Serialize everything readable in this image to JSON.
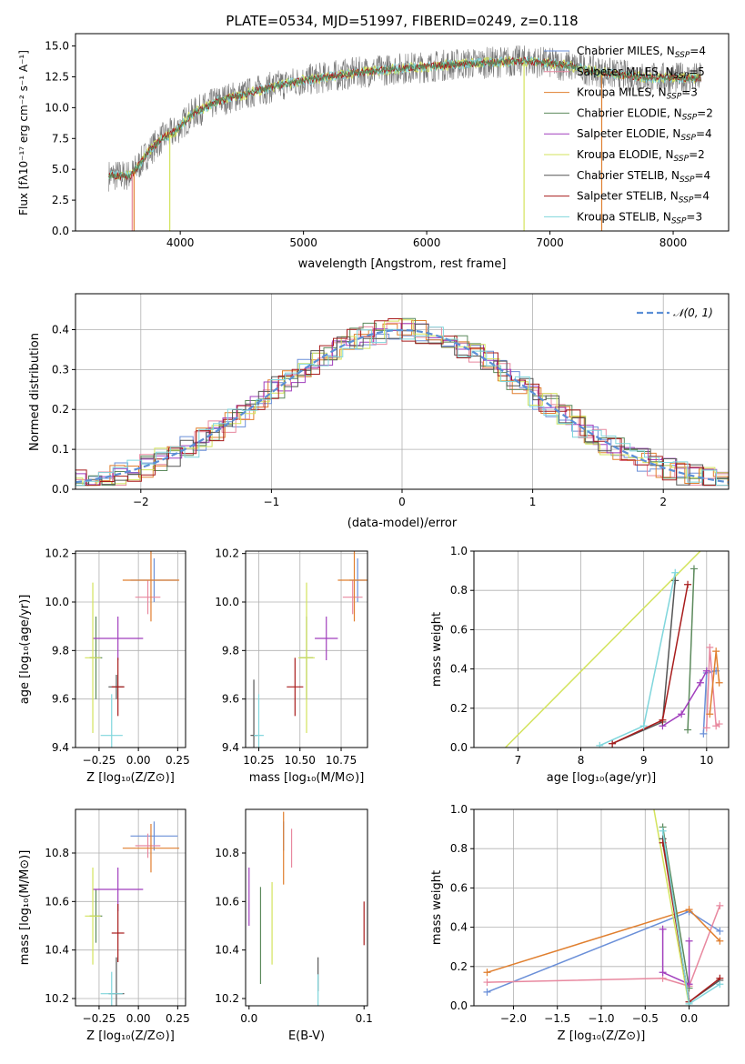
{
  "figure_title": "PLATE=0534, MJD=51997, FIBERID=0249, z=0.118",
  "colors": {
    "Chabrier MILES": "#6a8fd8",
    "Salpeter MILES": "#e8889f",
    "Kroupa MILES": "#e07f2f",
    "Chabrier ELODIE": "#5c8a5c",
    "Salpeter ELODIE": "#a13fbd",
    "Kroupa ELODIE": "#d3e35c",
    "Chabrier STELIB": "#555555",
    "Salpeter STELIB": "#a81c1c",
    "Kroupa STELIB": "#7fd6dc",
    "normal": "#5b8fd6"
  },
  "panels": {
    "spectrum": {
      "xlabel": "wavelength [Angstrom, rest frame]",
      "ylabel": "Flux [fλ10⁻¹⁷ erg cm⁻² s⁻¹ A⁻¹]",
      "xticks": [
        "4000",
        "5000",
        "6000",
        "7000",
        "8000"
      ],
      "yticks": [
        "0.0",
        "2.5",
        "5.0",
        "7.5",
        "10.0",
        "12.5",
        "15.0"
      ],
      "legend": [
        "Chabrier MILES, N_SSP=4",
        "Salpeter MILES, N_SSP=5",
        "Kroupa MILES, N_SSP=3",
        "Chabrier ELODIE, N_SSP=2",
        "Salpeter ELODIE, N_SSP=4",
        "Kroupa ELODIE, N_SSP=2",
        "Chabrier STELIB, N_SSP=4",
        "Salpeter STELIB, N_SSP=4",
        "Kroupa STELIB, N_SSP=3"
      ]
    },
    "residuals": {
      "xlabel": "(data-model)/error",
      "ylabel": "Normed distribution",
      "xticks": [
        "−2",
        "−1",
        "0",
        "1",
        "2"
      ],
      "yticks": [
        "0.0",
        "0.1",
        "0.2",
        "0.3",
        "0.4"
      ],
      "legend": "𝒩(0, 1)"
    },
    "age_Z": {
      "xlabel": "Z [log₁₀(Z/Z⊙)]",
      "ylabel": "age  [log₁₀(age/yr)]",
      "xticks": [
        "−0.25",
        "0.00",
        "0.25"
      ],
      "yticks": [
        "9.4",
        "9.6",
        "9.8",
        "10.0",
        "10.2"
      ]
    },
    "age_mass": {
      "xlabel": "mass [log₁₀(M/M⊙)]",
      "xticks": [
        "10.25",
        "10.50",
        "10.75"
      ],
      "yticks": [
        "9.4",
        "9.6",
        "9.8",
        "10.0",
        "10.2"
      ]
    },
    "mw_age": {
      "xlabel": "age  [log₁₀(age/yr)]",
      "ylabel": "mass weight",
      "xticks": [
        "7",
        "8",
        "9",
        "10"
      ],
      "yticks": [
        "0.0",
        "0.2",
        "0.4",
        "0.6",
        "0.8",
        "1.0"
      ]
    },
    "mass_Z": {
      "xlabel": "Z [log₁₀(Z/Z⊙)]",
      "ylabel": "mass [log₁₀(M/M⊙)]",
      "xticks": [
        "−0.25",
        "0.00",
        "0.25"
      ],
      "yticks": [
        "10.2",
        "10.4",
        "10.6",
        "10.8"
      ]
    },
    "mass_ebv": {
      "xlabel": "E(B-V)",
      "xticks": [
        "0.0",
        "0.1"
      ],
      "yticks": [
        "10.2",
        "10.4",
        "10.6",
        "10.8"
      ]
    },
    "mw_Z": {
      "xlabel": "Z [log₁₀(Z/Z⊙)]",
      "ylabel": "mass weight",
      "xticks": [
        "−2.0",
        "−1.5",
        "−1.0",
        "−0.5",
        "0.0"
      ],
      "yticks": [
        "0.0",
        "0.2",
        "0.4",
        "0.6",
        "0.8",
        "1.0"
      ]
    }
  },
  "chart_data": [
    {
      "type": "line",
      "title": "PLATE=0534, MJD=51997, FIBERID=0249, z=0.118",
      "xlabel": "wavelength [Angstrom, rest frame]",
      "ylabel": "Flux [fλ10⁻¹⁷ erg cm⁻² s⁻¹ A⁻¹]",
      "xlim": [
        3150,
        8450
      ],
      "ylim": [
        0,
        16
      ],
      "grid": false,
      "legend_position": "top-right",
      "series": [
        {
          "name": "Chabrier MILES, N_SSP=4"
        },
        {
          "name": "Salpeter MILES, N_SSP=5"
        },
        {
          "name": "Kroupa MILES, N_SSP=3"
        },
        {
          "name": "Chabrier ELODIE, N_SSP=2"
        },
        {
          "name": "Salpeter ELODIE, N_SSP=4"
        },
        {
          "name": "Kroupa ELODIE, N_SSP=2"
        },
        {
          "name": "Chabrier STELIB, N_SSP=4"
        },
        {
          "name": "Salpeter STELIB, N_SSP=4"
        },
        {
          "name": "Kroupa STELIB, N_SSP=3"
        }
      ],
      "continuum_x": [
        3420,
        3600,
        3750,
        3850,
        3950,
        4000,
        4100,
        4200,
        4300,
        4400,
        4500,
        4600,
        4800,
        5000,
        5200,
        5400,
        5600,
        5800,
        6000,
        6200,
        6400,
        6600,
        6800,
        7000,
        7200,
        7400,
        7600,
        7800,
        8000,
        8200
      ],
      "continuum_y": [
        4.5,
        4.5,
        6.5,
        7.5,
        8.0,
        8.5,
        9.5,
        10.0,
        10.5,
        10.8,
        11.0,
        11.3,
        11.8,
        12.2,
        12.5,
        12.8,
        13.0,
        13.2,
        13.3,
        13.5,
        13.6,
        13.7,
        13.8,
        13.6,
        13.3,
        12.9,
        12.6,
        12.4,
        12.4,
        12.4
      ]
    },
    {
      "type": "line",
      "xlabel": "(data-model)/error",
      "ylabel": "Normed distribution",
      "xlim": [
        -2.5,
        2.5
      ],
      "ylim": [
        0,
        0.49
      ],
      "grid": true,
      "legend_position": "top-right",
      "series": [
        {
          "name": "𝒩(0, 1)",
          "mu": 0,
          "sigma": 1
        }
      ]
    },
    {
      "type": "scatter",
      "xlabel": "Z [log₁₀(Z/Z⊙)]",
      "ylabel": "age  [log₁₀(age/yr)]",
      "xlim": [
        -0.4,
        0.3
      ],
      "ylim": [
        9.4,
        10.21
      ],
      "grid": true,
      "points": [
        {
          "series": "Chabrier MILES",
          "x": 0.1,
          "y": 10.09,
          "xerr": 0.15,
          "yerr": 0.09
        },
        {
          "series": "Salpeter MILES",
          "x": 0.06,
          "y": 10.02,
          "xerr": 0.08,
          "yerr": 0.07
        },
        {
          "series": "Kroupa MILES",
          "x": 0.08,
          "y": 10.09,
          "xerr": 0.18,
          "yerr": 0.17
        },
        {
          "series": "Chabrier ELODIE",
          "x": -0.27,
          "y": 9.77,
          "xerr": 0.04,
          "yerr": 0.17
        },
        {
          "series": "Salpeter ELODIE",
          "x": -0.13,
          "y": 9.85,
          "xerr": 0.16,
          "yerr": 0.09
        },
        {
          "series": "Kroupa ELODIE",
          "x": -0.29,
          "y": 9.77,
          "xerr": 0.05,
          "yerr": 0.31
        },
        {
          "series": "Chabrier STELIB",
          "x": -0.14,
          "y": 9.65,
          "xerr": 0.05,
          "yerr": 0.05
        },
        {
          "series": "Salpeter STELIB",
          "x": -0.13,
          "y": 9.65,
          "xerr": 0.04,
          "yerr": 0.12
        },
        {
          "series": "Kroupa STELIB",
          "x": -0.17,
          "y": 9.45,
          "xerr": 0.07,
          "yerr": 0.17
        }
      ]
    },
    {
      "type": "scatter",
      "xlabel": "mass [log₁₀(M/M⊙)]",
      "xlim": [
        10.17,
        10.91
      ],
      "ylim": [
        9.4,
        10.21
      ],
      "grid": true,
      "points": [
        {
          "series": "Chabrier MILES",
          "x": 10.85,
          "y": 10.09,
          "xerr": 0.05,
          "yerr": 0.09
        },
        {
          "series": "Salpeter MILES",
          "x": 10.82,
          "y": 10.02,
          "xerr": 0.06,
          "yerr": 0.07
        },
        {
          "series": "Kroupa MILES",
          "x": 10.83,
          "y": 10.09,
          "xerr": 0.1,
          "yerr": 0.17
        },
        {
          "series": "Chabrier ELODIE",
          "x": 10.54,
          "y": 9.77,
          "xerr": 0.04,
          "yerr": 0.17
        },
        {
          "series": "Salpeter ELODIE",
          "x": 10.66,
          "y": 9.85,
          "xerr": 0.07,
          "yerr": 0.09
        },
        {
          "series": "Kroupa ELODIE",
          "x": 10.54,
          "y": 9.77,
          "xerr": 0.05,
          "yerr": 0.31
        },
        {
          "series": "Chabrier STELIB",
          "x": 10.22,
          "y": 9.45,
          "xerr": 0.02,
          "yerr": 0.23
        },
        {
          "series": "Salpeter STELIB",
          "x": 10.47,
          "y": 9.65,
          "xerr": 0.05,
          "yerr": 0.12
        },
        {
          "series": "Kroupa STELIB",
          "x": 10.25,
          "y": 9.45,
          "xerr": 0.03,
          "yerr": 0.17
        }
      ]
    },
    {
      "type": "line",
      "xlabel": "age  [log₁₀(age/yr)]",
      "ylabel": "mass weight",
      "xlim": [
        6.3,
        10.35
      ],
      "ylim": [
        0,
        1
      ],
      "grid": true,
      "series": [
        {
          "series": "Chabrier MILES",
          "x": [
            9.95,
            10.0,
            10.15
          ],
          "y": [
            0.07,
            0.38,
            0.39
          ]
        },
        {
          "series": "Salpeter MILES",
          "x": [
            10.0,
            10.05,
            10.15,
            10.2
          ],
          "y": [
            0.1,
            0.51,
            0.11,
            0.12
          ]
        },
        {
          "series": "Kroupa MILES",
          "x": [
            10.05,
            10.15,
            10.2
          ],
          "y": [
            0.17,
            0.49,
            0.33
          ]
        },
        {
          "series": "Chabrier ELODIE",
          "x": [
            9.7,
            9.8
          ],
          "y": [
            0.09,
            0.91
          ]
        },
        {
          "series": "Salpeter ELODIE",
          "x": [
            9.3,
            9.6,
            9.9,
            10.0
          ],
          "y": [
            0.11,
            0.17,
            0.33,
            0.39
          ]
        },
        {
          "series": "Kroupa ELODIE",
          "x": [
            6.8,
            9.9
          ],
          "y": [
            0.0,
            1.0
          ]
        },
        {
          "series": "Chabrier STELIB",
          "x": [
            8.5,
            9.3,
            9.5
          ],
          "y": [
            0.02,
            0.13,
            0.85
          ]
        },
        {
          "series": "Salpeter STELIB",
          "x": [
            8.5,
            9.3,
            9.7
          ],
          "y": [
            0.02,
            0.14,
            0.83
          ]
        },
        {
          "series": "Kroupa STELIB",
          "x": [
            8.3,
            9.0,
            9.5
          ],
          "y": [
            0.01,
            0.11,
            0.89
          ]
        }
      ]
    },
    {
      "type": "scatter",
      "xlabel": "Z [log₁₀(Z/Z⊙)]",
      "ylabel": "mass [log₁₀(M/M⊙)]",
      "xlim": [
        -0.4,
        0.3
      ],
      "ylim": [
        10.17,
        10.98
      ],
      "grid": true,
      "points": [
        {
          "series": "Chabrier MILES",
          "x": 0.1,
          "y": 10.87,
          "xerr": 0.15,
          "yerr": 0.06
        },
        {
          "series": "Salpeter MILES",
          "x": 0.06,
          "y": 10.83,
          "xerr": 0.08,
          "yerr": 0.05
        },
        {
          "series": "Kroupa MILES",
          "x": 0.08,
          "y": 10.82,
          "xerr": 0.18,
          "yerr": 0.1
        },
        {
          "series": "Chabrier ELODIE",
          "x": -0.27,
          "y": 10.54,
          "xerr": 0.04,
          "yerr": 0.11
        },
        {
          "series": "Salpeter ELODIE",
          "x": -0.13,
          "y": 10.65,
          "xerr": 0.16,
          "yerr": 0.09
        },
        {
          "series": "Kroupa ELODIE",
          "x": -0.29,
          "y": 10.54,
          "xerr": 0.05,
          "yerr": 0.2
        },
        {
          "series": "Chabrier STELIB",
          "x": -0.14,
          "y": 10.22,
          "xerr": 0.05,
          "yerr": 0.15
        },
        {
          "series": "Salpeter STELIB",
          "x": -0.13,
          "y": 10.47,
          "xerr": 0.04,
          "yerr": 0.12
        },
        {
          "series": "Kroupa STELIB",
          "x": -0.17,
          "y": 10.22,
          "xerr": 0.07,
          "yerr": 0.09
        }
      ]
    },
    {
      "type": "scatter",
      "xlabel": "E(B-V)",
      "xlim": [
        -0.003,
        0.103
      ],
      "ylim": [
        10.17,
        10.98
      ],
      "grid": false,
      "points": [
        {
          "series": "Chabrier MILES",
          "x": 0.03,
          "y": 10.87,
          "yerr": 0.06
        },
        {
          "series": "Salpeter MILES",
          "x": 0.037,
          "y": 10.82,
          "yerr": 0.08
        },
        {
          "series": "Kroupa MILES",
          "x": 0.03,
          "y": 10.82,
          "yerr": 0.15
        },
        {
          "series": "Chabrier ELODIE",
          "x": 0.01,
          "y": 10.46,
          "yerr": 0.2
        },
        {
          "series": "Salpeter ELODIE",
          "x": 0.0,
          "y": 10.62,
          "yerr": 0.12
        },
        {
          "series": "Kroupa ELODIE",
          "x": 0.02,
          "y": 10.51,
          "yerr": 0.17
        },
        {
          "series": "Chabrier STELIB",
          "x": 0.06,
          "y": 10.3,
          "yerr": 0.07
        },
        {
          "series": "Salpeter STELIB",
          "x": 0.1,
          "y": 10.51,
          "yerr": 0.09
        },
        {
          "series": "Kroupa STELIB",
          "x": 0.06,
          "y": 10.22,
          "yerr": 0.08
        }
      ]
    },
    {
      "type": "line",
      "xlabel": "Z [log₁₀(Z/Z⊙)]",
      "ylabel": "mass weight",
      "xlim": [
        -2.45,
        0.45
      ],
      "ylim": [
        0,
        1
      ],
      "grid": true,
      "series": [
        {
          "series": "Chabrier MILES",
          "x": [
            -2.3,
            0.0,
            0.35
          ],
          "y": [
            0.07,
            0.48,
            0.38
          ]
        },
        {
          "series": "Salpeter MILES",
          "x": [
            -2.3,
            -0.3,
            0.0,
            0.35
          ],
          "y": [
            0.12,
            0.14,
            0.1,
            0.51
          ]
        },
        {
          "series": "Kroupa MILES",
          "x": [
            -2.3,
            0.0,
            0.35
          ],
          "y": [
            0.17,
            0.49,
            0.33
          ]
        },
        {
          "series": "Chabrier ELODIE",
          "x": [
            -0.3,
            0.0
          ],
          "y": [
            0.91,
            0.09
          ]
        },
        {
          "series": "Salpeter ELODIE",
          "x": [
            -0.3,
            -0.3,
            0.0,
            0.0
          ],
          "y": [
            0.39,
            0.17,
            0.11,
            0.33
          ]
        },
        {
          "series": "Kroupa ELODIE",
          "x": [
            -0.4,
            0.0
          ],
          "y": [
            1.0,
            0.0
          ]
        },
        {
          "series": "Chabrier STELIB",
          "x": [
            -0.3,
            0.0,
            0.35
          ],
          "y": [
            0.85,
            0.02,
            0.13
          ]
        },
        {
          "series": "Salpeter STELIB",
          "x": [
            -0.3,
            0.0,
            0.35
          ],
          "y": [
            0.83,
            0.02,
            0.14
          ]
        },
        {
          "series": "Kroupa STELIB",
          "x": [
            -0.3,
            0.0,
            0.35
          ],
          "y": [
            0.89,
            0.01,
            0.11
          ]
        }
      ]
    }
  ]
}
